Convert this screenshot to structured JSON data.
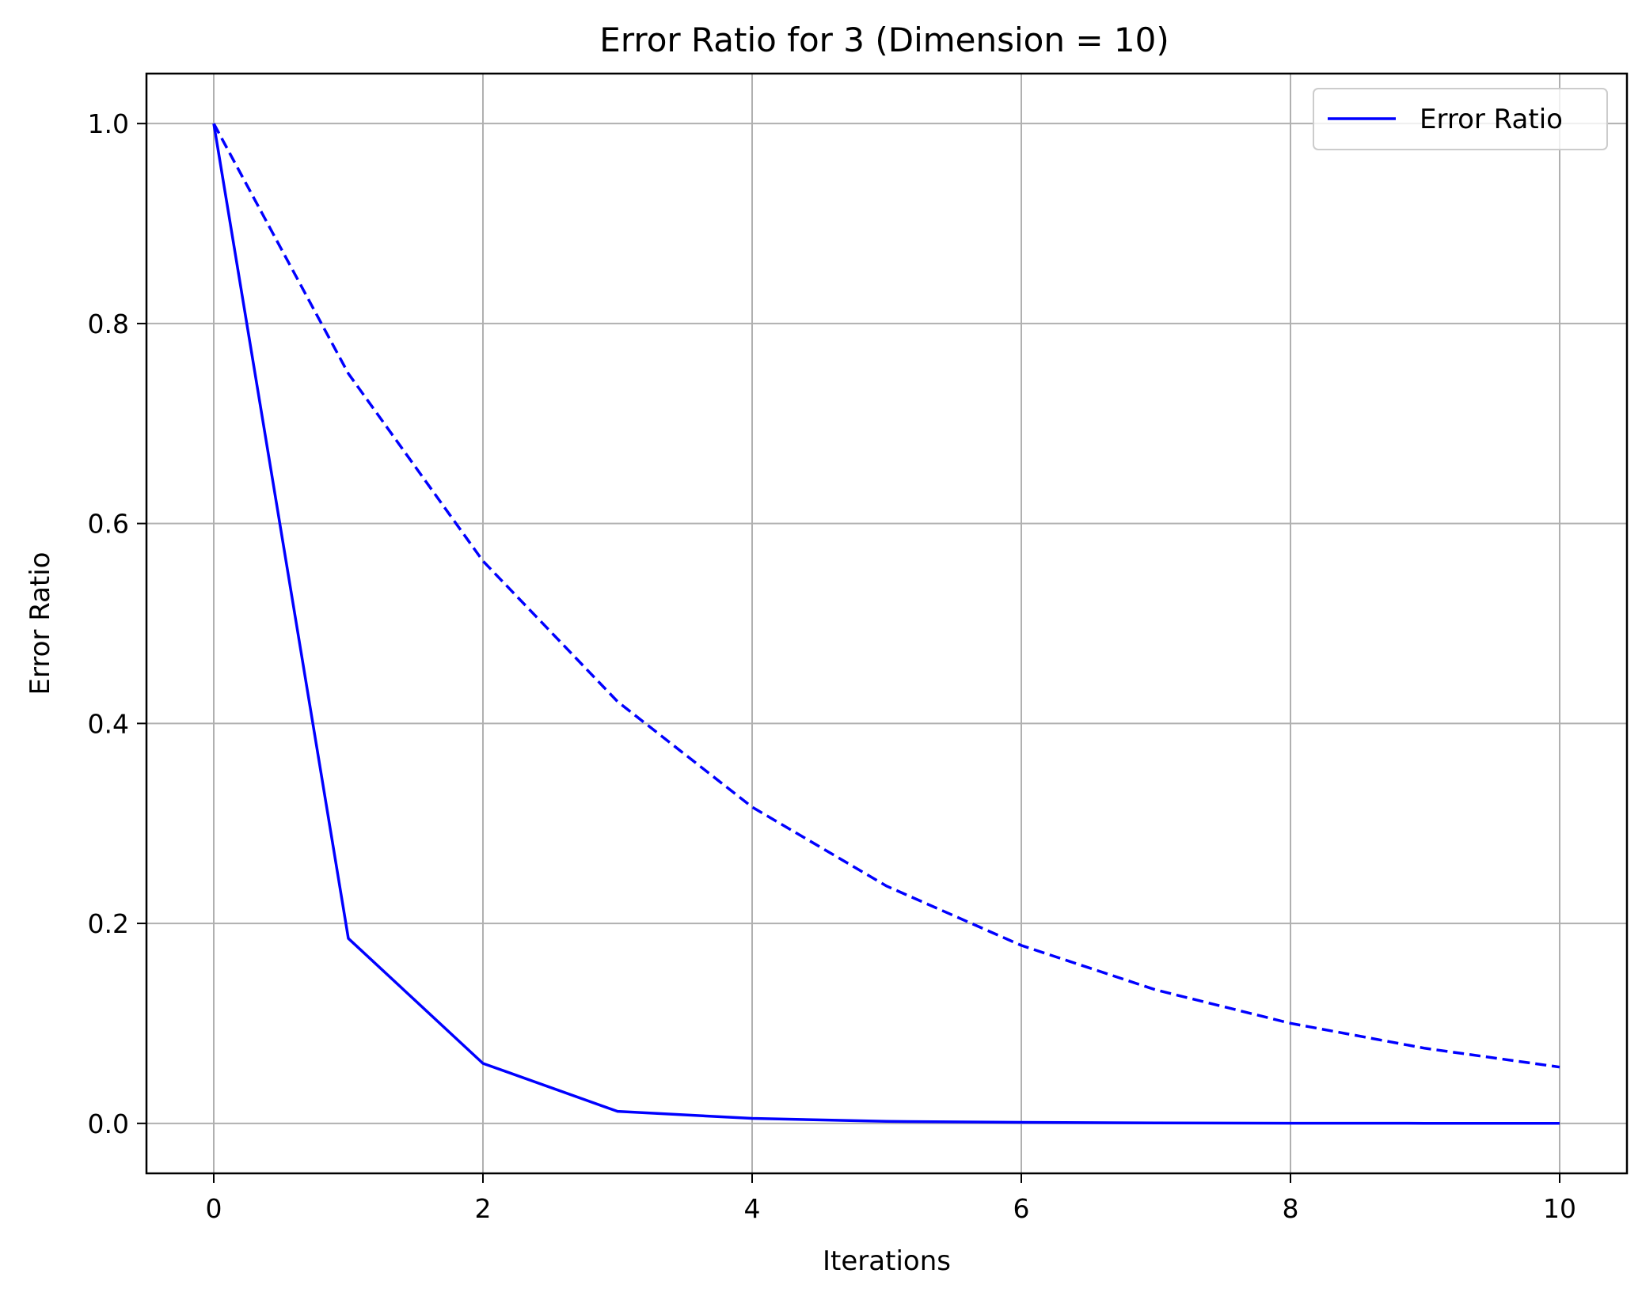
{
  "chart_data": {
    "type": "line",
    "title": "Error Ratio for 3 (Dimension = 10)",
    "xlabel": "Iterations",
    "ylabel": "Error Ratio",
    "xlim": [
      -0.5,
      10.5
    ],
    "ylim": [
      -0.05,
      1.05
    ],
    "xticks": [
      0,
      2,
      4,
      6,
      8,
      10
    ],
    "xtick_labels": [
      "0",
      "2",
      "4",
      "6",
      "8",
      "10"
    ],
    "yticks": [
      0.0,
      0.2,
      0.4,
      0.6,
      0.8,
      1.0
    ],
    "ytick_labels": [
      "0.0",
      "0.2",
      "0.4",
      "0.6",
      "0.8",
      "1.0"
    ],
    "grid": true,
    "legend_position": "top-right",
    "series": [
      {
        "name": "Error Ratio",
        "style": "solid",
        "color": "#0000ff",
        "x": [
          0,
          1,
          2,
          3,
          4,
          5,
          6,
          7,
          8,
          9,
          10
        ],
        "values": [
          1.0,
          0.185,
          0.06,
          0.012,
          0.005,
          0.002,
          0.001,
          0.0005,
          0.0002,
          0.0001,
          0.0001
        ]
      },
      {
        "style": "dashed",
        "color": "#0000ff",
        "x": [
          0,
          1,
          2,
          3,
          4,
          5,
          6,
          7,
          8,
          9,
          10
        ],
        "values": [
          1.0,
          0.75,
          0.5625,
          0.4219,
          0.3164,
          0.2373,
          0.178,
          0.1335,
          0.1001,
          0.0751,
          0.0563
        ]
      }
    ]
  }
}
